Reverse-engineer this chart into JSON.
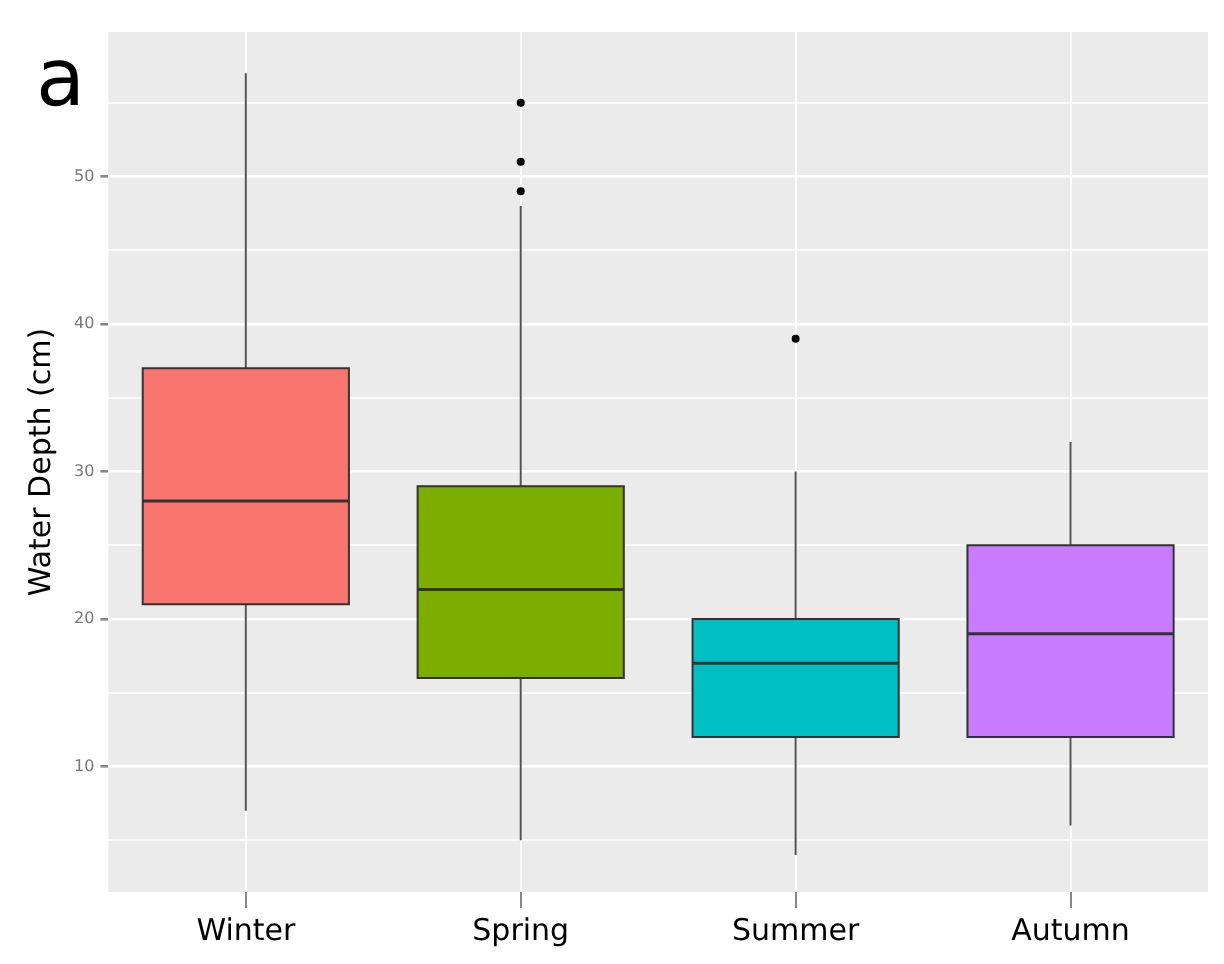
{
  "chart_data": {
    "type": "box",
    "ylabel": "Water Depth (cm)",
    "annotations": [
      "a"
    ],
    "categories": [
      "Winter",
      "Spring",
      "Summer",
      "Autumn"
    ],
    "colors": [
      "#f8766d",
      "#7cae00",
      "#00bfc4",
      "#c77cff"
    ],
    "boxes": [
      {
        "low": 7,
        "q1": 21,
        "median": 28,
        "q3": 37,
        "high": 57
      },
      {
        "low": 5,
        "q1": 16,
        "median": 22,
        "q3": 29,
        "high": 48,
        "outliers": [
          49,
          51,
          55
        ]
      },
      {
        "low": 4,
        "q1": 12,
        "median": 17,
        "q3": 20,
        "high": 30,
        "outliers": [
          39
        ]
      },
      {
        "low": 6,
        "q1": 12,
        "median": 19,
        "q3": 25,
        "high": 32
      }
    ],
    "ylim": [
      1.5,
      59.8
    ],
    "yticks": [
      {
        "value": 5,
        "label": null
      },
      10,
      {
        "value": 15,
        "label": null
      },
      20,
      {
        "value": 25,
        "label": null
      },
      30,
      {
        "value": 35,
        "label": null
      },
      40,
      {
        "value": 45,
        "label": null
      },
      50,
      {
        "value": 55,
        "label": null
      }
    ],
    "grid": true
  }
}
